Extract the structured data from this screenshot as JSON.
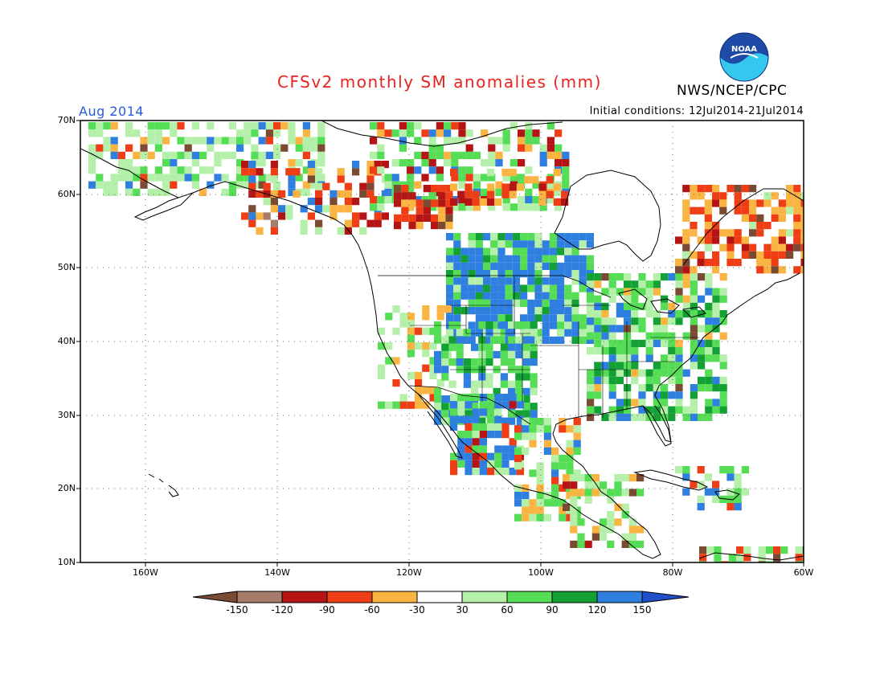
{
  "title": "CFSv2 monthly SM anomalies (mm)",
  "organization": "NWS/NCEP/CPC",
  "logo_text": "NOAA",
  "forecast_month": "Aug 2014",
  "initial_conditions": "Initial conditions: 12Jul2014-21Jul2014",
  "latitude_labels": [
    "70N",
    "60N",
    "50N",
    "40N",
    "30N",
    "20N",
    "10N"
  ],
  "longitude_labels": [
    "160W",
    "140W",
    "120W",
    "100W",
    "80W",
    "60W"
  ],
  "colorbar": {
    "labels": [
      "-150",
      "-120",
      "-90",
      "-60",
      "-30",
      "30",
      "60",
      "90",
      "120",
      "150"
    ],
    "colors": [
      "#7b4a32",
      "#a87c6a",
      "#b51414",
      "#ef3e15",
      "#f9b442",
      "#ffffff",
      "#b4f0aa",
      "#55dd55",
      "#13a135",
      "#2f7fe0",
      "#2050c8"
    ]
  },
  "colors": {
    "title": "#e8231f",
    "period": "#2a5bd7",
    "grid": "#666666",
    "land_outline": "#000000"
  }
}
